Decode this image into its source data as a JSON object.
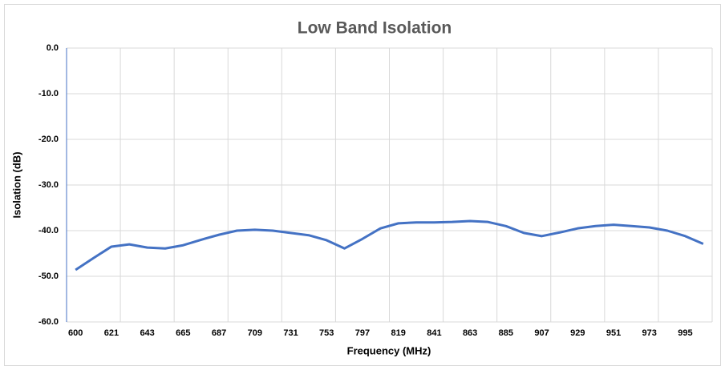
{
  "chart_data": {
    "type": "line",
    "title": "Low Band Isolation",
    "x_label": "Frequency (MHz)",
    "y_label": "Isolation (dB)",
    "categories": [
      "600",
      null,
      "621",
      null,
      "643",
      null,
      "665",
      null,
      "687",
      null,
      "709",
      null,
      "731",
      null,
      "753",
      null,
      "797",
      null,
      "819",
      null,
      "841",
      null,
      "863",
      null,
      "885",
      null,
      "907",
      null,
      "929",
      null,
      "951",
      null,
      "973",
      null,
      "995",
      null
    ],
    "series": [
      {
        "name": "Isolation",
        "color": "#4472c4",
        "values": [
          -48.6,
          -46.0,
          -43.5,
          -43.0,
          -43.7,
          -43.9,
          -43.2,
          -42.0,
          -40.9,
          -40.0,
          -39.8,
          -40.0,
          -40.5,
          -41.0,
          -42.1,
          -43.9,
          -41.8,
          -39.5,
          -38.4,
          -38.2,
          -38.2,
          -38.1,
          -37.9,
          -38.1,
          -39.0,
          -40.5,
          -41.2,
          -40.4,
          -39.5,
          -39.0,
          -38.7,
          -39.0,
          -39.3,
          -40.0,
          -41.2,
          -42.9
        ]
      }
    ],
    "ylim": [
      -60,
      0
    ],
    "yticks": [
      {
        "value": -60,
        "label": "-60.0"
      },
      {
        "value": -50,
        "label": "-50.0"
      },
      {
        "value": -40,
        "label": "-40.0"
      },
      {
        "value": -30,
        "label": "-30.0"
      },
      {
        "value": -20,
        "label": "-20.0"
      },
      {
        "value": -10,
        "label": "-10.0"
      },
      {
        "value": 0,
        "label": "0.0"
      }
    ],
    "grid": true
  }
}
